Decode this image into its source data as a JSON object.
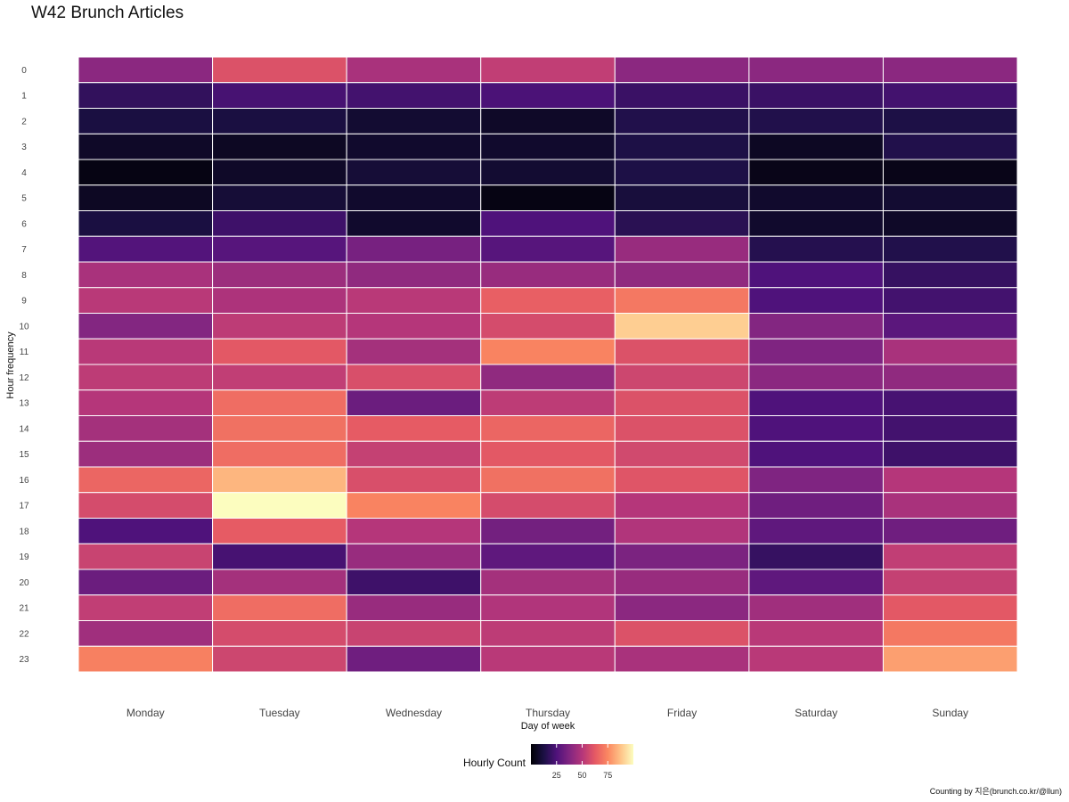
{
  "chart_data": {
    "type": "heatmap",
    "title": "W42 Brunch Articles",
    "xlabel": "Day of week",
    "ylabel": "Hour frequency",
    "x_categories": [
      "Monday",
      "Tuesday",
      "Wednesday",
      "Thursday",
      "Friday",
      "Saturday",
      "Sunday"
    ],
    "y_categories": [
      "0",
      "1",
      "2",
      "3",
      "4",
      "5",
      "6",
      "7",
      "8",
      "9",
      "10",
      "11",
      "12",
      "13",
      "14",
      "15",
      "16",
      "17",
      "18",
      "19",
      "20",
      "21",
      "22",
      "23"
    ],
    "values": [
      [
        40,
        60,
        47,
        53,
        40,
        40,
        40
      ],
      [
        18,
        23,
        22,
        24,
        20,
        20,
        22
      ],
      [
        12,
        12,
        9,
        7,
        14,
        14,
        13
      ],
      [
        7,
        6,
        8,
        8,
        13,
        6,
        14
      ],
      [
        3,
        7,
        10,
        9,
        13,
        4,
        4
      ],
      [
        6,
        10,
        8,
        3,
        11,
        8,
        9
      ],
      [
        12,
        21,
        8,
        25,
        16,
        8,
        7
      ],
      [
        26,
        27,
        35,
        27,
        43,
        15,
        14
      ],
      [
        47,
        44,
        41,
        43,
        41,
        25,
        19
      ],
      [
        51,
        48,
        51,
        64,
        71,
        25,
        22
      ],
      [
        38,
        52,
        50,
        58,
        90,
        38,
        28
      ],
      [
        51,
        62,
        46,
        74,
        60,
        37,
        47
      ],
      [
        52,
        53,
        59,
        41,
        56,
        40,
        41
      ],
      [
        50,
        68,
        32,
        52,
        60,
        25,
        23
      ],
      [
        46,
        69,
        63,
        66,
        60,
        25,
        22
      ],
      [
        44,
        68,
        54,
        62,
        57,
        25,
        21
      ],
      [
        66,
        85,
        59,
        69,
        61,
        37,
        50
      ],
      [
        58,
        100,
        74,
        58,
        50,
        33,
        47
      ],
      [
        25,
        63,
        50,
        34,
        49,
        29,
        33
      ],
      [
        55,
        23,
        43,
        29,
        36,
        19,
        53
      ],
      [
        32,
        46,
        21,
        46,
        43,
        29,
        54
      ],
      [
        53,
        68,
        43,
        49,
        40,
        45,
        62
      ],
      [
        45,
        58,
        55,
        52,
        60,
        51,
        71
      ],
      [
        73,
        56,
        33,
        51,
        47,
        51,
        80
      ]
    ],
    "color_scale": {
      "name": "magma",
      "min": 0,
      "max": 100,
      "stops": [
        "#000004",
        "#1b1044",
        "#4f127b",
        "#812581",
        "#b5367a",
        "#e55964",
        "#fb8761",
        "#fec287",
        "#fcfdbf"
      ]
    },
    "legend": {
      "title": "Hourly Count",
      "ticks": [
        25,
        50,
        75
      ],
      "position": "bottom"
    },
    "grid": false,
    "tile_border_color": "#ffffff"
  },
  "caption": "Counting by 지은(brunch.co.kr/@llun)"
}
